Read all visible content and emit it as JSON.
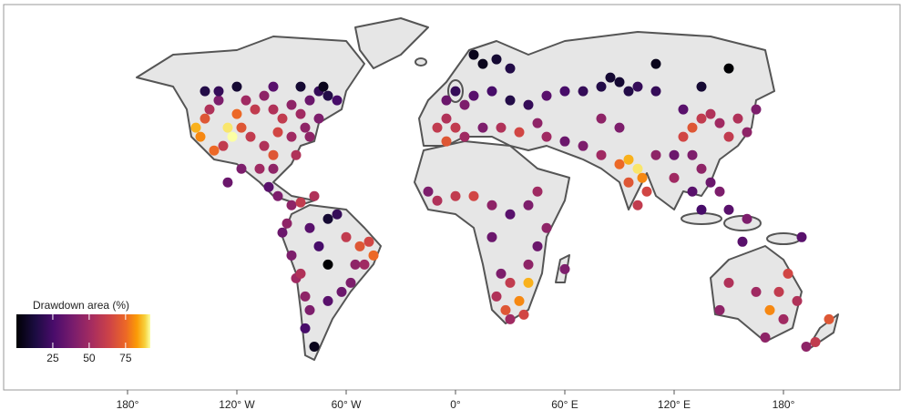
{
  "chart_data": {
    "type": "scatter",
    "colorbar_title": "Drawdown area (%)",
    "color_lim": [
      0,
      92
    ],
    "colorbar_ticks": [
      25,
      50,
      75
    ],
    "xlim": [
      -248,
      244
    ],
    "ylim": [
      -79,
      90
    ],
    "xticks": [
      {
        "value": -180,
        "label": "180°"
      },
      {
        "value": -120,
        "label": "120° W"
      },
      {
        "value": -60,
        "label": "60° W"
      },
      {
        "value": 0,
        "label": "0°"
      },
      {
        "value": 60,
        "label": "60° E"
      },
      {
        "value": 120,
        "label": "120° E"
      },
      {
        "value": 180,
        "label": "180°"
      }
    ],
    "x": [
      -142.5,
      -140,
      -137.5,
      -135,
      -130,
      -125,
      -122.5,
      -120,
      -117.5,
      -127.5,
      -132.5,
      -115,
      -110,
      -105,
      -100,
      -95,
      -90,
      -85,
      -80,
      -75,
      -70,
      -65,
      -97.5,
      -105,
      -112.5,
      -90,
      -82.5,
      -100,
      -107.5,
      -117.5,
      -125,
      -130,
      -137.5,
      -120,
      -100,
      -85,
      -72.5,
      -75,
      -80,
      -87.5,
      -100,
      -102.5,
      -97.5,
      -90,
      -85,
      -77.5,
      -95,
      -90,
      -87.5,
      -80,
      -75,
      -70,
      -60,
      -52.5,
      -47.5,
      -55,
      -57.5,
      -62.5,
      -70,
      -80,
      -82.5,
      -77.5,
      -82.5,
      -85,
      -70,
      -65,
      -50,
      -45,
      -92.5,
      10,
      15,
      22.5,
      30,
      0,
      -5,
      5,
      10,
      20,
      30,
      40,
      50,
      60,
      -5,
      0,
      5,
      15,
      25,
      35,
      45,
      50,
      60,
      -5,
      -10,
      70,
      80,
      90,
      100,
      110,
      150,
      135,
      -15,
      -10,
      0,
      10,
      20,
      30,
      40,
      45,
      50,
      45,
      40,
      30,
      22.5,
      27.5,
      35,
      40,
      37.5,
      30,
      25,
      60,
      20,
      70,
      80,
      90,
      95,
      100,
      102.5,
      95,
      105,
      100,
      110,
      120,
      125,
      130,
      135,
      140,
      145,
      150,
      155,
      160,
      165,
      130,
      135,
      140,
      145,
      130,
      135,
      150,
      160,
      90,
      80,
      120,
      125,
      85,
      95,
      110,
      150,
      145,
      165,
      172.5,
      177.5,
      182.5,
      187.5,
      180,
      170,
      190,
      205,
      197.5,
      192.5,
      157.5
    ],
    "y": [
      36,
      32,
      40,
      44,
      48,
      36,
      32,
      42,
      36,
      28,
      26,
      48,
      44,
      50,
      44,
      40,
      46,
      42,
      48,
      52,
      50,
      48,
      34,
      28,
      32,
      32,
      36,
      24,
      18,
      18,
      12,
      52,
      52,
      54,
      54,
      54,
      54,
      40,
      32,
      24,
      18,
      10,
      6,
      2,
      3.2,
      6,
      -10,
      -20,
      -30,
      -8,
      -16,
      -24,
      -12,
      -16,
      -14,
      -24,
      -32,
      -36,
      -40,
      -44,
      -52,
      -60,
      -38,
      -28,
      -4,
      -2,
      -24,
      -20,
      -6,
      68,
      64,
      66,
      62,
      52,
      48,
      46,
      50,
      52,
      48,
      46,
      50,
      52,
      40,
      36,
      32,
      36,
      36,
      34,
      38,
      32,
      30,
      30,
      36,
      52,
      54,
      56,
      54,
      64,
      62,
      54,
      8,
      4,
      6,
      6,
      2,
      -2,
      2,
      8,
      -8,
      -16,
      -24,
      -32,
      -38,
      -44,
      -40,
      -32,
      -46,
      -48,
      -28,
      -26,
      -12,
      28,
      24,
      20,
      22,
      18,
      14,
      12,
      8,
      2,
      24,
      24,
      32,
      36,
      40,
      42,
      38,
      32,
      40,
      34,
      44,
      24,
      18,
      12,
      8,
      8,
      0,
      0,
      -4,
      36,
      40,
      14,
      44,
      58,
      52,
      52,
      -32,
      -44,
      -36,
      -44,
      -36,
      -28,
      -40,
      -48,
      -56,
      -12,
      -48,
      -58,
      -60,
      -14
    ],
    "values": [
      85,
      80,
      70,
      55,
      40,
      90,
      92,
      75,
      70,
      60,
      75,
      50,
      60,
      45,
      55,
      60,
      45,
      50,
      35,
      20,
      15,
      25,
      65,
      55,
      60,
      50,
      45,
      70,
      50,
      40,
      35,
      20,
      15,
      10,
      30,
      10,
      5,
      40,
      45,
      55,
      45,
      30,
      40,
      45,
      60,
      55,
      35,
      40,
      50,
      30,
      25,
      0,
      60,
      70,
      65,
      45,
      40,
      35,
      30,
      40,
      25,
      5,
      45,
      55,
      10,
      20,
      50,
      75,
      45,
      5,
      5,
      10,
      15,
      20,
      35,
      40,
      30,
      25,
      15,
      20,
      30,
      25,
      55,
      60,
      50,
      40,
      55,
      65,
      45,
      50,
      35,
      70,
      60,
      20,
      15,
      10,
      20,
      5,
      0,
      10,
      40,
      55,
      60,
      65,
      45,
      30,
      40,
      50,
      45,
      35,
      45,
      60,
      55,
      70,
      80,
      85,
      65,
      50,
      40,
      40,
      35,
      40,
      50,
      75,
      85,
      90,
      80,
      70,
      65,
      60,
      45,
      35,
      65,
      70,
      60,
      55,
      50,
      60,
      55,
      45,
      40,
      40,
      45,
      35,
      40,
      30,
      25,
      30,
      40,
      40,
      45,
      50,
      30,
      10,
      15,
      20,
      55,
      45,
      50,
      80,
      60,
      65,
      55,
      50,
      45,
      30,
      70,
      60,
      45,
      30
    ]
  }
}
